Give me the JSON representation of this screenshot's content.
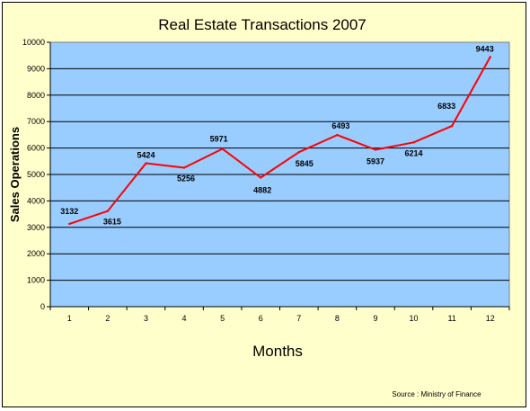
{
  "chart_data": {
    "type": "line",
    "title": "Real Estate Transactions 2007",
    "xlabel": "Months",
    "ylabel": "Sales Operations",
    "categories": [
      "1",
      "2",
      "3",
      "4",
      "5",
      "6",
      "7",
      "8",
      "9",
      "10",
      "11",
      "12"
    ],
    "series": [
      {
        "values": [
          3132,
          3615,
          5424,
          5256,
          5971,
          4882,
          5845,
          6493,
          5937,
          6214,
          6833,
          9443
        ]
      }
    ],
    "data_labels": [
      "3132",
      "3615",
      "5424",
      "5256",
      "5971",
      "4882",
      "5845",
      "6493",
      "5937",
      "6214",
      "6833",
      "9443"
    ],
    "yticks": [
      "0",
      "1000",
      "2000",
      "3000",
      "4000",
      "5000",
      "6000",
      "7000",
      "8000",
      "9000",
      "10000"
    ],
    "ylim": [
      0,
      10000
    ],
    "grid": true,
    "legend": "none",
    "source": "Source : Ministry of Finance",
    "colors": {
      "background": "#ffffcc",
      "plot_area": "#99ccff",
      "line": "#ff0000",
      "gridline": "#000000"
    }
  }
}
